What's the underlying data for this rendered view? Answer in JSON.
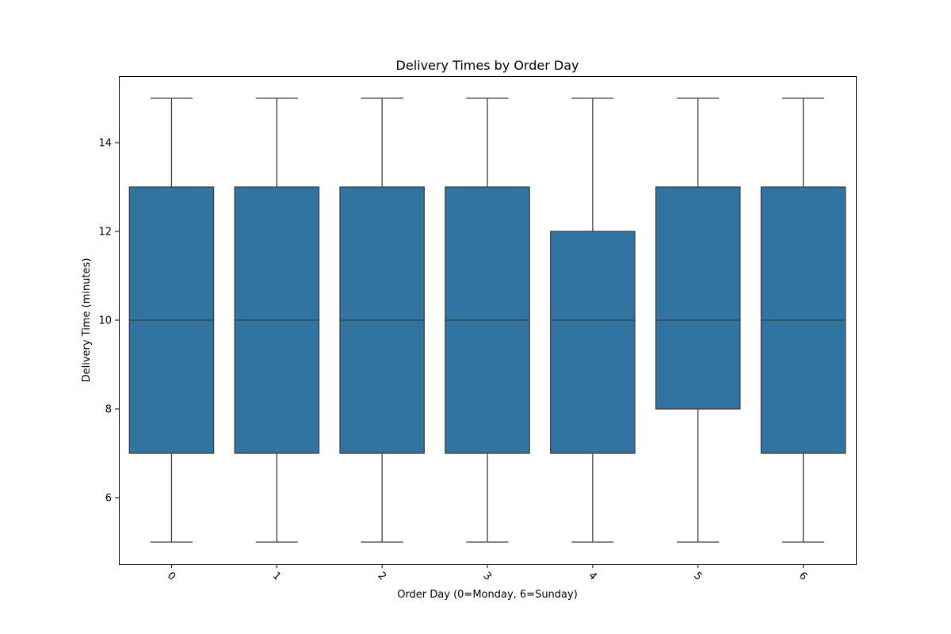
{
  "chart_data": {
    "type": "box",
    "title": "Delivery Times by Order Day",
    "xlabel": "Order Day (0=Monday, 6=Sunday)",
    "ylabel": "Delivery Time (minutes)",
    "categories": [
      "0",
      "1",
      "2",
      "3",
      "4",
      "5",
      "6"
    ],
    "boxes": [
      {
        "category": "0",
        "whisker_low": 5,
        "q1": 7,
        "median": 10,
        "q3": 13,
        "whisker_high": 15
      },
      {
        "category": "1",
        "whisker_low": 5,
        "q1": 7,
        "median": 10,
        "q3": 13,
        "whisker_high": 15
      },
      {
        "category": "2",
        "whisker_low": 5,
        "q1": 7,
        "median": 10,
        "q3": 13,
        "whisker_high": 15
      },
      {
        "category": "3",
        "whisker_low": 5,
        "q1": 7,
        "median": 10,
        "q3": 13,
        "whisker_high": 15
      },
      {
        "category": "4",
        "whisker_low": 5,
        "q1": 7,
        "median": 10,
        "q3": 12,
        "whisker_high": 15
      },
      {
        "category": "5",
        "whisker_low": 5,
        "q1": 8,
        "median": 10,
        "q3": 13,
        "whisker_high": 15
      },
      {
        "category": "6",
        "whisker_low": 5,
        "q1": 7,
        "median": 10,
        "q3": 13,
        "whisker_high": 15
      }
    ],
    "ylim": [
      4.5,
      15.5
    ],
    "yticks": [
      6,
      8,
      10,
      12,
      14
    ],
    "xtick_rotation": 45,
    "grid": false,
    "legend": false,
    "box_color": "#3274a1",
    "line_color": "#3d3d3d"
  }
}
